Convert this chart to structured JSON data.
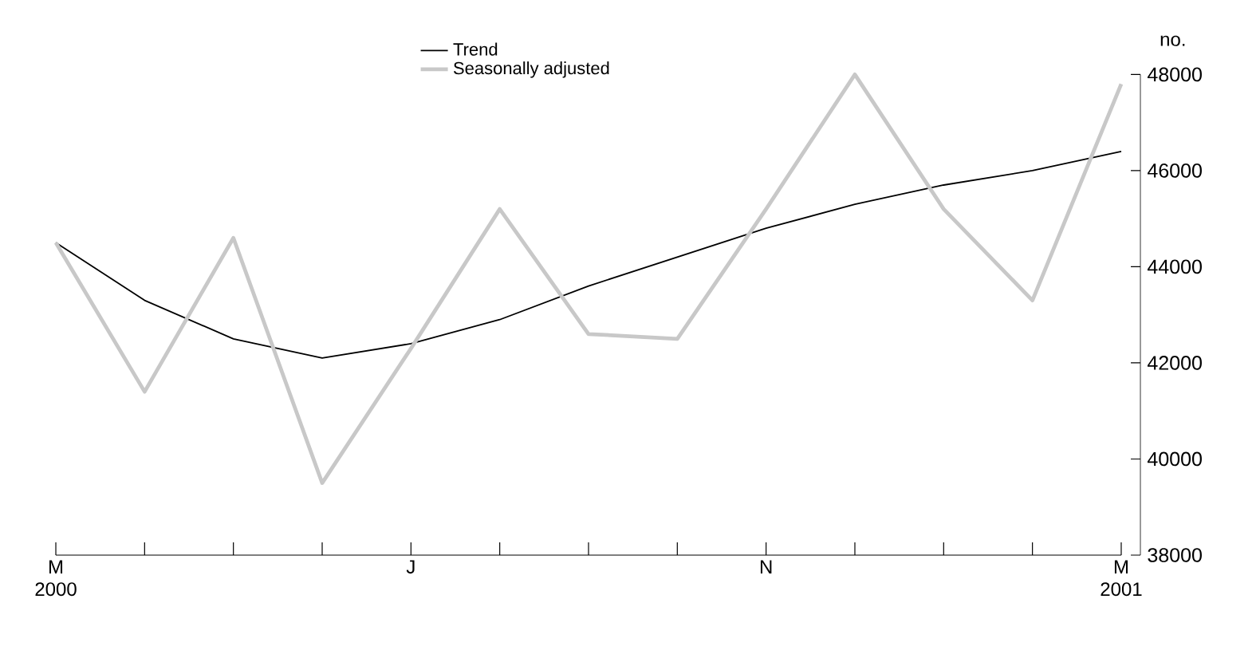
{
  "chart_data": {
    "type": "line",
    "ylabel": "no.",
    "categories": [
      "M 2000",
      null,
      null,
      null,
      "J",
      null,
      null,
      null,
      "N",
      null,
      null,
      null,
      "M 2001"
    ],
    "series": [
      {
        "name": "Trend",
        "color": "#000000",
        "values": [
          44500,
          43300,
          42500,
          42100,
          42400,
          42900,
          43600,
          44200,
          44800,
          45300,
          45700,
          46000,
          46400
        ]
      },
      {
        "name": "Seasonally adjusted",
        "color": "#c8c8c8",
        "values": [
          44500,
          41400,
          44600,
          39500,
          42300,
          45200,
          42600,
          42500,
          45200,
          48000,
          45200,
          43300,
          47800
        ]
      }
    ],
    "ylim": [
      38000,
      48000
    ],
    "yticks": [
      38000,
      40000,
      42000,
      44000,
      46000,
      48000
    ],
    "legend": "top",
    "grid": false
  }
}
